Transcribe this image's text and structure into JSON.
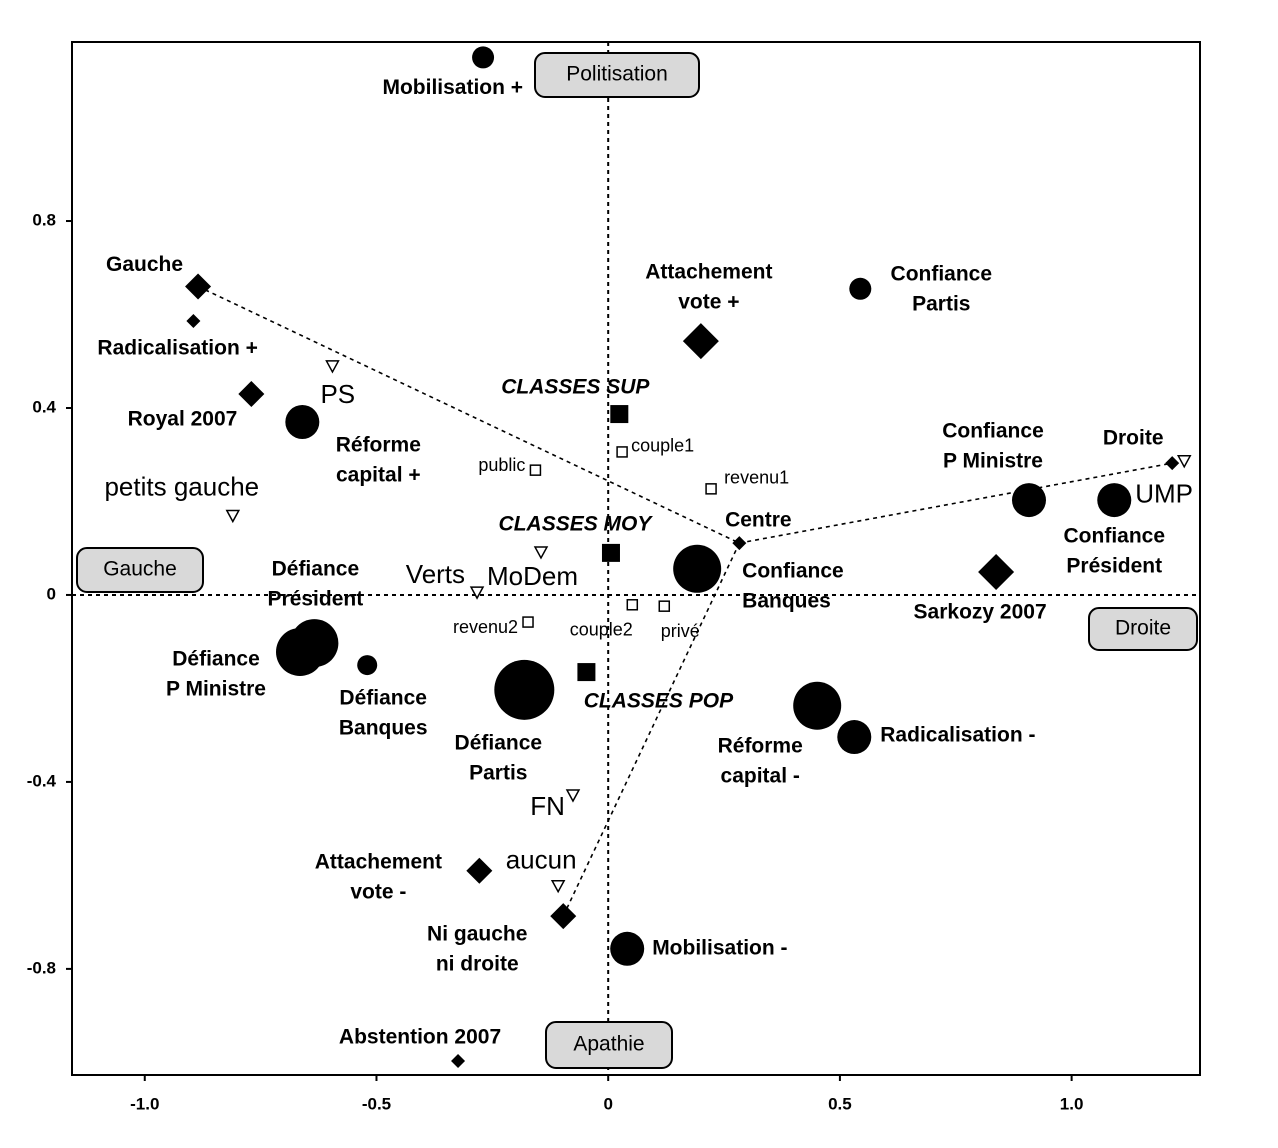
{
  "chart_data": {
    "type": "scatter",
    "xlim": [
      -1.157,
      1.277
    ],
    "ylim": [
      -1.027,
      1.183
    ],
    "xticks": [
      {
        "value": -1,
        "label": "-1.0"
      },
      -0.5,
      0,
      0.5,
      {
        "value": 1,
        "label": "1.0"
      }
    ],
    "yticks": [
      0.8,
      0.4,
      0,
      -0.4,
      -0.8
    ],
    "poles": {
      "top": "Politisation",
      "left": "Gauche",
      "right": "Droite",
      "bottom": "Apathie"
    },
    "color": "#000000",
    "points": [
      {
        "label": [
          "Mobilisation +"
        ],
        "x": -0.27,
        "y": 1.15,
        "marker": "circle",
        "size": "medium",
        "style": "bold"
      },
      {
        "label": [
          "Gauche"
        ],
        "x": -0.885,
        "y": 0.66,
        "marker": "diamond",
        "size": "medium",
        "style": "bold"
      },
      {
        "label": [
          "Radicalisation +"
        ],
        "x": -0.895,
        "y": 0.586,
        "marker": "diamond",
        "size": "small",
        "style": "bold"
      },
      {
        "label": [
          "Royal 2007"
        ],
        "x": -0.77,
        "y": 0.43,
        "marker": "diamond",
        "size": "medium",
        "style": "bold"
      },
      {
        "label": [
          "Réforme",
          "capital +"
        ],
        "x": -0.66,
        "y": 0.37,
        "marker": "circle",
        "size": "large",
        "style": "bold"
      },
      {
        "label": [
          "PS"
        ],
        "x": -0.595,
        "y": 0.49,
        "marker": "triangle",
        "size": "small",
        "style": "party"
      },
      {
        "label": [
          "petits gauche"
        ],
        "x": -0.81,
        "y": 0.17,
        "marker": "triangle",
        "size": "small",
        "style": "party"
      },
      {
        "label": [
          "public"
        ],
        "x": -0.157,
        "y": 0.267,
        "marker": "open-square",
        "size": "small",
        "style": "small"
      },
      {
        "label": [
          "CLASSES SUP"
        ],
        "x": 0.024,
        "y": 0.387,
        "marker": "square",
        "size": "medium",
        "style": "class"
      },
      {
        "label": [
          "couple1"
        ],
        "x": 0.03,
        "y": 0.306,
        "marker": "open-square",
        "size": "small",
        "style": "small"
      },
      {
        "label": [
          "revenu1"
        ],
        "x": 0.222,
        "y": 0.227,
        "marker": "open-square",
        "size": "small",
        "style": "small"
      },
      {
        "label": [
          "Attachement",
          "vote +"
        ],
        "x": 0.2,
        "y": 0.543,
        "marker": "diamond",
        "size": "large",
        "style": "bold"
      },
      {
        "label": [
          "Confiance",
          "Partis"
        ],
        "x": 0.544,
        "y": 0.655,
        "marker": "circle",
        "size": "medium",
        "style": "bold"
      },
      {
        "label": [
          "Centre"
        ],
        "x": 0.283,
        "y": 0.111,
        "marker": "diamond",
        "size": "small",
        "style": "bold"
      },
      {
        "label": [
          "Confiance",
          "Banques"
        ],
        "x": 0.192,
        "y": 0.056,
        "marker": "circle",
        "size": "xlarge",
        "style": "bold"
      },
      {
        "label": [
          "CLASSES MOY"
        ],
        "x": 0.006,
        "y": 0.09,
        "marker": "square",
        "size": "medium",
        "style": "class"
      },
      {
        "label": [
          "MoDem"
        ],
        "x": -0.145,
        "y": 0.092,
        "marker": "triangle",
        "size": "small",
        "style": "party"
      },
      {
        "label": [
          "Verts"
        ],
        "x": -0.283,
        "y": 0.006,
        "marker": "triangle",
        "size": "small",
        "style": "party"
      },
      {
        "label": [
          "revenu2"
        ],
        "x": -0.173,
        "y": -0.058,
        "marker": "open-square",
        "size": "small",
        "style": "small"
      },
      {
        "label": [
          "couple2"
        ],
        "x": 0.052,
        "y": -0.021,
        "marker": "open-square",
        "size": "small",
        "style": "small"
      },
      {
        "label": [
          "privé"
        ],
        "x": 0.121,
        "y": -0.024,
        "marker": "open-square",
        "size": "small",
        "style": "small"
      },
      {
        "label": [
          "Confiance",
          "P Ministre"
        ],
        "x": 0.908,
        "y": 0.203,
        "marker": "circle",
        "size": "large",
        "style": "bold"
      },
      {
        "label": [
          "Confiance",
          "Président"
        ],
        "x": 1.092,
        "y": 0.203,
        "marker": "circle",
        "size": "large",
        "style": "bold"
      },
      {
        "label": [
          "UMP"
        ],
        "x": 1.243,
        "y": 0.287,
        "marker": "triangle",
        "size": "small",
        "style": "party"
      },
      {
        "label": [
          "Droite"
        ],
        "x": 1.217,
        "y": 0.282,
        "marker": "diamond",
        "size": "small",
        "style": "bold"
      },
      {
        "label": [
          "Sarkozy 2007"
        ],
        "x": 0.837,
        "y": 0.049,
        "marker": "diamond",
        "size": "large",
        "style": "bold"
      },
      {
        "label": [
          "Défiance",
          "Président"
        ],
        "x": -0.634,
        "y": -0.103,
        "marker": "circle",
        "size": "xlarge",
        "style": "bold"
      },
      {
        "label": [
          "Défiance",
          "P Ministre"
        ],
        "x": -0.665,
        "y": -0.122,
        "marker": "circle",
        "size": "xlarge",
        "style": "bold"
      },
      {
        "label": [
          "Défiance",
          "Banques"
        ],
        "x": -0.52,
        "y": -0.15,
        "marker": "circle",
        "size": "small",
        "style": "bold"
      },
      {
        "label": [
          "Défiance",
          "Partis"
        ],
        "x": -0.181,
        "y": -0.203,
        "marker": "circle",
        "size": "xxlarge",
        "style": "bold"
      },
      {
        "label": [
          "CLASSES POP"
        ],
        "x": -0.047,
        "y": -0.165,
        "marker": "square",
        "size": "medium",
        "style": "class"
      },
      {
        "label": [
          "Réforme",
          "capital -"
        ],
        "x": 0.451,
        "y": -0.237,
        "marker": "circle",
        "size": "xlarge",
        "style": "bold"
      },
      {
        "label": [
          "Radicalisation -"
        ],
        "x": 0.531,
        "y": -0.304,
        "marker": "circle",
        "size": "large",
        "style": "bold"
      },
      {
        "label": [
          "FN"
        ],
        "x": -0.076,
        "y": -0.428,
        "marker": "triangle",
        "size": "small",
        "style": "party"
      },
      {
        "label": [
          "Attachement",
          "vote -"
        ],
        "x": -0.278,
        "y": -0.59,
        "marker": "diamond",
        "size": "medium",
        "style": "bold"
      },
      {
        "label": [
          "aucun"
        ],
        "x": -0.108,
        "y": -0.622,
        "marker": "triangle",
        "size": "small",
        "style": "party"
      },
      {
        "label": [
          "Ni gauche",
          "ni droite"
        ],
        "x": -0.097,
        "y": -0.687,
        "marker": "diamond",
        "size": "medium",
        "style": "bold"
      },
      {
        "label": [
          "Mobilisation -"
        ],
        "x": 0.041,
        "y": -0.757,
        "marker": "circle",
        "size": "large",
        "style": "bold"
      },
      {
        "label": [
          "Abstention 2007"
        ],
        "x": -0.324,
        "y": -0.997,
        "marker": "diamond",
        "size": "small",
        "style": "bold"
      }
    ]
  }
}
